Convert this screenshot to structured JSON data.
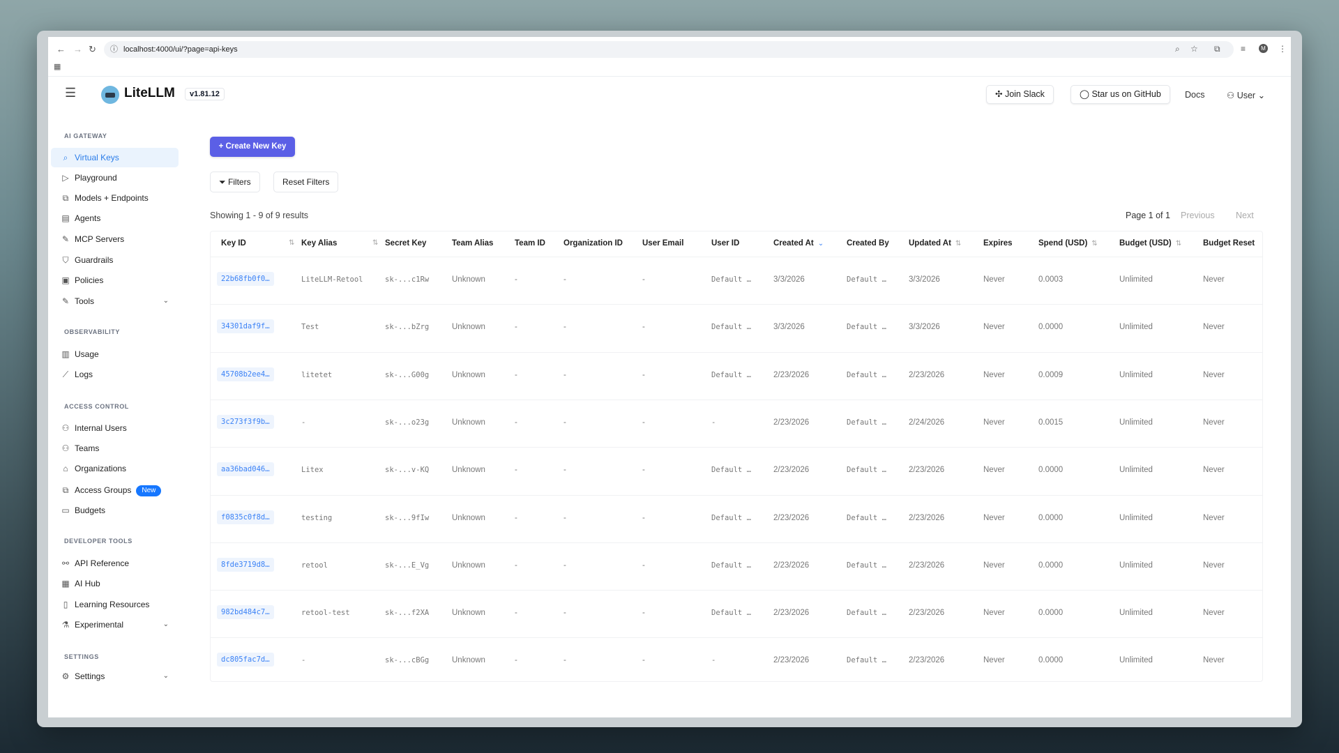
{
  "browser": {
    "url": "localhost:4000/ui/?page=api-keys"
  },
  "header": {
    "brand": "LiteLLM",
    "version": "v1.81.12",
    "join_slack": "Join Slack",
    "github": "Star us on GitHub",
    "docs": "Docs",
    "user": "User"
  },
  "sidebar": {
    "sections": [
      {
        "title": "AI GATEWAY",
        "items": [
          {
            "label": "Virtual Keys",
            "icon": "search-icon",
            "active": true
          },
          {
            "label": "Playground",
            "icon": "play-icon"
          },
          {
            "label": "Models + Endpoints",
            "icon": "models-icon"
          },
          {
            "label": "Agents",
            "icon": "agent-icon"
          },
          {
            "label": "MCP Servers",
            "icon": "tool-icon"
          },
          {
            "label": "Guardrails",
            "icon": "shield-icon"
          },
          {
            "label": "Policies",
            "icon": "policy-icon"
          },
          {
            "label": "Tools",
            "icon": "wrench-icon",
            "expand": true
          }
        ]
      },
      {
        "title": "OBSERVABILITY",
        "items": [
          {
            "label": "Usage",
            "icon": "bar-chart-icon"
          },
          {
            "label": "Logs",
            "icon": "line-chart-icon"
          }
        ]
      },
      {
        "title": "ACCESS CONTROL",
        "items": [
          {
            "label": "Internal Users",
            "icon": "user-icon"
          },
          {
            "label": "Teams",
            "icon": "team-icon"
          },
          {
            "label": "Organizations",
            "icon": "bank-icon"
          },
          {
            "label": "Access Groups",
            "icon": "group-icon",
            "badge": "New"
          },
          {
            "label": "Budgets",
            "icon": "wallet-icon"
          }
        ]
      },
      {
        "title": "DEVELOPER TOOLS",
        "items": [
          {
            "label": "API Reference",
            "icon": "api-icon"
          },
          {
            "label": "AI Hub",
            "icon": "grid-icon"
          },
          {
            "label": "Learning Resources",
            "icon": "book-icon"
          },
          {
            "label": "Experimental",
            "icon": "flask-icon",
            "expand": true
          }
        ]
      },
      {
        "title": "SETTINGS",
        "items": [
          {
            "label": "Settings",
            "icon": "gear-icon",
            "expand": true
          }
        ]
      }
    ]
  },
  "main": {
    "create_label": "+ Create New Key",
    "filters_label": "Filters",
    "reset_label": "Reset Filters",
    "showing": "Showing 1 - 9 of 9 results",
    "page": "Page 1 of 1",
    "previous": "Previous",
    "next": "Next"
  },
  "table": {
    "columns": [
      {
        "label": "Key ID",
        "sort": "both"
      },
      {
        "label": "Key Alias",
        "sort": "both"
      },
      {
        "label": "Secret Key"
      },
      {
        "label": "Team Alias"
      },
      {
        "label": "Team ID"
      },
      {
        "label": "Organization ID"
      },
      {
        "label": "User Email"
      },
      {
        "label": "User ID"
      },
      {
        "label": "Created At",
        "sort": "desc"
      },
      {
        "label": "Created By"
      },
      {
        "label": "Updated At",
        "sort": "both"
      },
      {
        "label": "Expires"
      },
      {
        "label": "Spend (USD)",
        "sort": "both"
      },
      {
        "label": "Budget (USD)",
        "sort": "both"
      },
      {
        "label": "Budget Reset"
      }
    ],
    "rows": [
      [
        "22b68fb0f0…",
        "LiteLLM-Retool",
        "sk-...c1Rw",
        "Unknown",
        "-",
        "-",
        "-",
        "Default …",
        "3/3/2026",
        "Default …",
        "3/3/2026",
        "Never",
        "0.0003",
        "Unlimited",
        "Never"
      ],
      [
        "34301daf9f…",
        "Test",
        "sk-...bZrg",
        "Unknown",
        "-",
        "-",
        "-",
        "Default …",
        "3/3/2026",
        "Default …",
        "3/3/2026",
        "Never",
        "0.0000",
        "Unlimited",
        "Never"
      ],
      [
        "45708b2ee4…",
        "litetet",
        "sk-...G00g",
        "Unknown",
        "-",
        "-",
        "-",
        "Default …",
        "2/23/2026",
        "Default …",
        "2/23/2026",
        "Never",
        "0.0009",
        "Unlimited",
        "Never"
      ],
      [
        "3c273f3f9b…",
        "-",
        "sk-...o23g",
        "Unknown",
        "-",
        "-",
        "-",
        "-",
        "2/23/2026",
        "Default …",
        "2/24/2026",
        "Never",
        "0.0015",
        "Unlimited",
        "Never"
      ],
      [
        "aa36bad046…",
        "Litex",
        "sk-...v-KQ",
        "Unknown",
        "-",
        "-",
        "-",
        "Default …",
        "2/23/2026",
        "Default …",
        "2/23/2026",
        "Never",
        "0.0000",
        "Unlimited",
        "Never"
      ],
      [
        "f0835c0f8d…",
        "testing",
        "sk-...9fIw",
        "Unknown",
        "-",
        "-",
        "-",
        "Default …",
        "2/23/2026",
        "Default …",
        "2/23/2026",
        "Never",
        "0.0000",
        "Unlimited",
        "Never"
      ],
      [
        "8fde3719d8…",
        "retool",
        "sk-...E_Vg",
        "Unknown",
        "-",
        "-",
        "-",
        "Default …",
        "2/23/2026",
        "Default …",
        "2/23/2026",
        "Never",
        "0.0000",
        "Unlimited",
        "Never"
      ],
      [
        "982bd484c7…",
        "retool-test",
        "sk-...f2XA",
        "Unknown",
        "-",
        "-",
        "-",
        "Default …",
        "2/23/2026",
        "Default …",
        "2/23/2026",
        "Never",
        "0.0000",
        "Unlimited",
        "Never"
      ],
      [
        "dc805fac7d…",
        "-",
        "sk-...cBGg",
        "Unknown",
        "-",
        "-",
        "-",
        "-",
        "2/23/2026",
        "Default …",
        "2/23/2026",
        "Never",
        "0.0000",
        "Unlimited",
        "Never"
      ]
    ]
  },
  "colors": {
    "accent": "#5b5fe6",
    "link": "#3b82f6",
    "active_bg": "#eaf3fd",
    "badge": "#1677ff"
  }
}
